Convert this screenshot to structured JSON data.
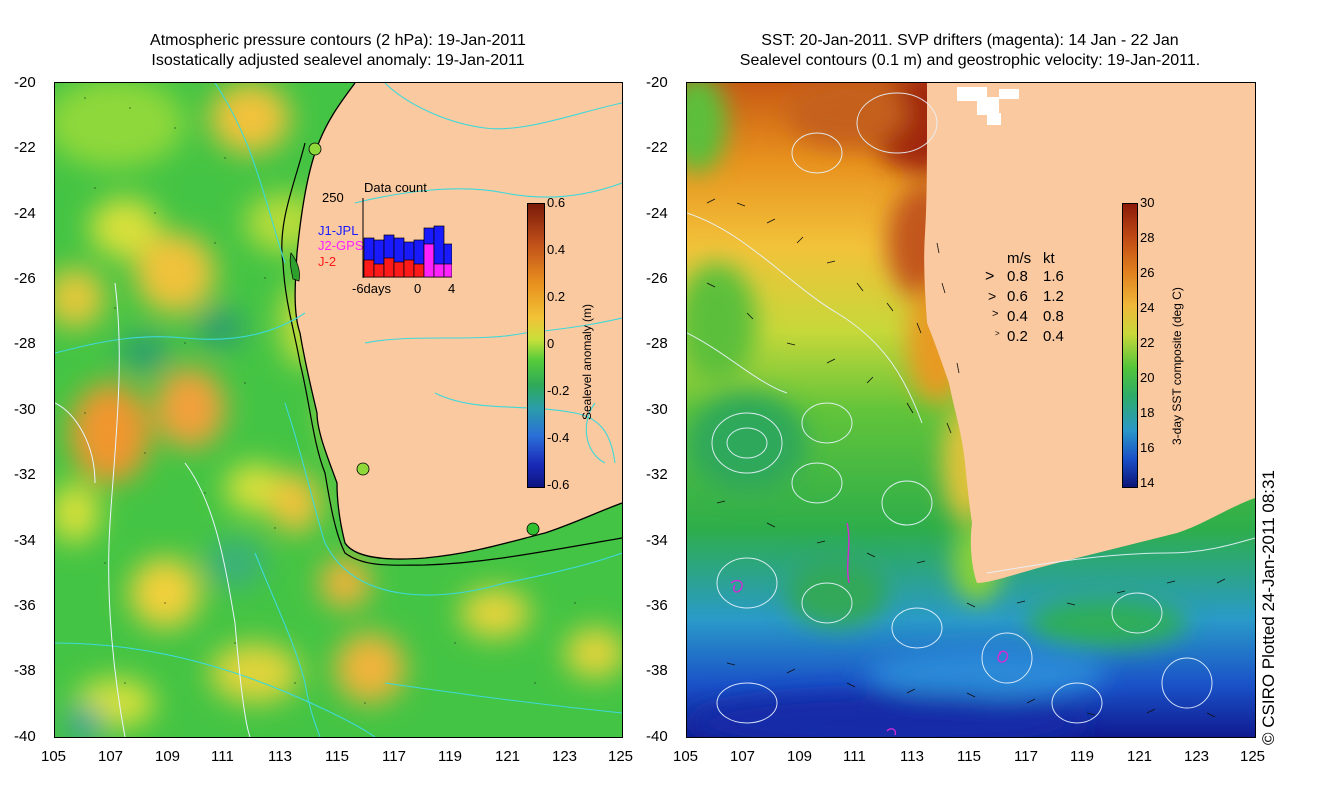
{
  "left_panel": {
    "title_line1": "Atmospheric pressure contours (2 hPa): 19-Jan-2011",
    "title_line2": "Isostatically adjusted sealevel anomaly: 19-Jan-2011",
    "colorbar_label": "Sealevel anomaly (m)",
    "colorbar_ticks": [
      "0.6",
      "0.4",
      "0.2",
      "0",
      "-0.2",
      "-0.4",
      "-0.6"
    ],
    "inset": {
      "title": "Data count",
      "ymax_label": "250",
      "xlabels": [
        "-6days",
        "0",
        "4"
      ],
      "legend": [
        {
          "label": "J1-JPL",
          "color": "#1a1aff"
        },
        {
          "label": "J2-GPS",
          "color": "#ff22ff"
        },
        {
          "label": "J-2",
          "color": "#ff1a1a"
        }
      ]
    }
  },
  "right_panel": {
    "title_line1": "SST: 20-Jan-2011. SVP drifters (magenta): 14 Jan - 22 Jan",
    "title_line2": "Sealevel contours (0.1 m) and geostrophic velocity: 19-Jan-2011.",
    "colorbar_label": "3-day SST composite (deg C)",
    "colorbar_ticks": [
      "30",
      "28",
      "26",
      "24",
      "22",
      "20",
      "18",
      "16",
      "14"
    ],
    "speed_legend": {
      "header_ms": "m/s",
      "header_kt": "kt",
      "rows": [
        {
          "ms": "0.8",
          "kt": "1.6"
        },
        {
          "ms": "0.6",
          "kt": "1.2"
        },
        {
          "ms": "0.4",
          "kt": "0.8"
        },
        {
          "ms": "0.2",
          "kt": "0.4"
        }
      ]
    }
  },
  "y_ticks": [
    "-20",
    "-22",
    "-24",
    "-26",
    "-28",
    "-30",
    "-32",
    "-34",
    "-36",
    "-38",
    "-40"
  ],
  "x_ticks": [
    "105",
    "107",
    "109",
    "111",
    "113",
    "115",
    "117",
    "119",
    "121",
    "123",
    "125"
  ],
  "credit": "© CSIRO Plotted 24-Jan-2011 08:31",
  "colors": {
    "land": "#fbc9a0",
    "coast_line": "#000000",
    "contour_cyan": "#3fd8d8",
    "contour_white": "#e8f4ff"
  }
}
